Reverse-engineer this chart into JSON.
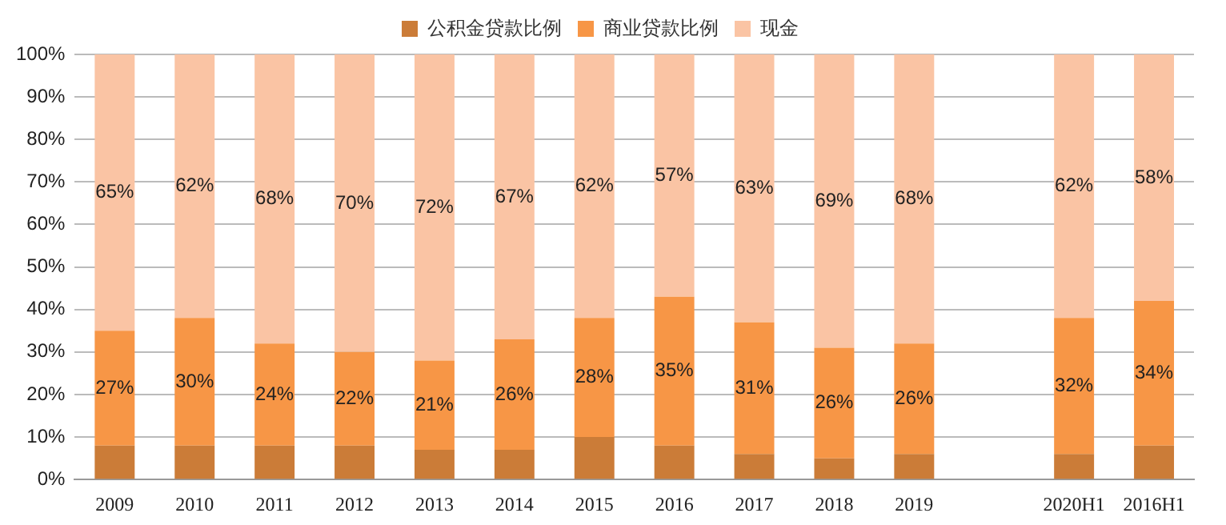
{
  "chart_data": {
    "type": "bar",
    "stacked": true,
    "legend": "top",
    "grid": "y",
    "categories": [
      "2009",
      "2010",
      "2011",
      "2012",
      "2013",
      "2014",
      "2015",
      "2016",
      "2017",
      "2018",
      "2019",
      null,
      "2020H1",
      "2016H1"
    ],
    "ylim": [
      0,
      100
    ],
    "yticks": [
      {
        "value": 0,
        "label": "0%"
      },
      {
        "value": 10,
        "label": "10%"
      },
      {
        "value": 20,
        "label": "20%"
      },
      {
        "value": 30,
        "label": "30%"
      },
      {
        "value": 40,
        "label": "40%"
      },
      {
        "value": 50,
        "label": "50%"
      },
      {
        "value": 60,
        "label": "60%"
      },
      {
        "value": 70,
        "label": "70%"
      },
      {
        "value": 80,
        "label": "80%"
      },
      {
        "value": 90,
        "label": "90%"
      },
      {
        "value": 100,
        "label": "100%"
      }
    ],
    "series": [
      {
        "name": "公积金贷款比例",
        "color": "#cb7c38",
        "values": [
          8,
          8,
          8,
          8,
          7,
          7,
          10,
          8,
          6,
          5,
          6,
          null,
          6,
          8
        ]
      },
      {
        "name": "商业贷款比例",
        "color": "#f79646",
        "values": [
          27,
          30,
          24,
          22,
          21,
          26,
          28,
          35,
          31,
          26,
          26,
          null,
          32,
          34
        ],
        "value_labels": [
          "27%",
          "30%",
          "24%",
          "22%",
          "21%",
          "26%",
          "28%",
          "35%",
          "31%",
          "26%",
          "26%",
          null,
          "32%",
          "34%"
        ]
      },
      {
        "name": "现金",
        "color": "#fac4a4",
        "values": [
          65,
          62,
          68,
          70,
          72,
          67,
          62,
          57,
          63,
          69,
          68,
          null,
          62,
          58
        ],
        "value_labels": [
          "65%",
          "62%",
          "68%",
          "70%",
          "72%",
          "67%",
          "62%",
          "57%",
          "63%",
          "69%",
          "68%",
          null,
          "62%",
          "58%"
        ]
      }
    ]
  }
}
